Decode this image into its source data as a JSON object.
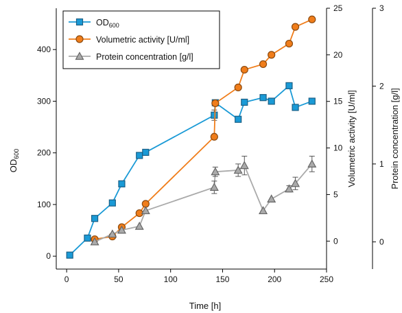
{
  "chart_data": {
    "type": "line",
    "x_axis": {
      "label": "Time [h]",
      "range": [
        -10,
        250
      ],
      "ticks": [
        0,
        50,
        100,
        150,
        200,
        250
      ]
    },
    "axes": [
      {
        "id": "od",
        "label_main": "OD",
        "label_sub": "600",
        "range": [
          -25,
          480
        ],
        "ticks": [
          0,
          100,
          200,
          300,
          400
        ],
        "position": "left"
      },
      {
        "id": "act",
        "label": "Volumetric activity [U/ml]",
        "range": [
          -3,
          25
        ],
        "ticks": [
          0,
          5,
          10,
          15,
          20,
          25
        ],
        "position": "right"
      },
      {
        "id": "prot",
        "label": "Protein concentration [g/l]",
        "range": [
          -0.35,
          3.0
        ],
        "ticks": [
          0,
          1,
          2,
          3
        ],
        "position": "far-right"
      }
    ],
    "series": [
      {
        "name_main": "OD",
        "name_sub": "600",
        "axis": "od",
        "marker": "square",
        "color": "#1a9ad6",
        "x": [
          3,
          20,
          27,
          44,
          53,
          70,
          76,
          142,
          143,
          165,
          171,
          189,
          197,
          214,
          220,
          236
        ],
        "y": [
          2,
          35,
          73,
          103,
          140,
          195,
          201,
          273,
          297,
          265,
          298,
          307,
          300,
          330,
          288,
          300
        ],
        "err": [
          0,
          0,
          0,
          0,
          0,
          4,
          0,
          10,
          5,
          0,
          0,
          0,
          0,
          0,
          0,
          0
        ]
      },
      {
        "name": "Volumetric activity [U/ml]",
        "axis": "act",
        "marker": "circle",
        "color": "#f07d1a",
        "x": [
          27,
          44,
          53,
          70,
          76,
          142,
          143,
          165,
          171,
          189,
          197,
          214,
          220,
          236
        ],
        "y": [
          0.2,
          0.5,
          1.5,
          3.0,
          4.0,
          11.2,
          14.8,
          16.5,
          18.4,
          19.0,
          20.0,
          21.2,
          23.0,
          23.8
        ],
        "err": [
          0,
          0,
          0,
          0,
          0,
          0,
          0,
          0,
          0,
          0,
          0,
          0,
          0,
          0
        ]
      },
      {
        "name": "Protein concentration [g/l]",
        "axis": "prot",
        "marker": "triangle",
        "color": "#aaaaaa",
        "x": [
          27,
          44,
          53,
          70,
          76,
          142,
          143,
          165,
          171,
          189,
          197,
          214,
          220,
          236
        ],
        "y": [
          0.0,
          0.1,
          0.15,
          0.2,
          0.4,
          0.7,
          0.9,
          0.92,
          0.98,
          0.4,
          0.55,
          0.68,
          0.75,
          1.0
        ],
        "err": [
          0,
          0,
          0,
          0,
          0,
          0.08,
          0.06,
          0.08,
          0.12,
          0,
          0,
          0.04,
          0.08,
          0.1
        ]
      }
    ],
    "legend": {
      "position": "top-left"
    }
  }
}
